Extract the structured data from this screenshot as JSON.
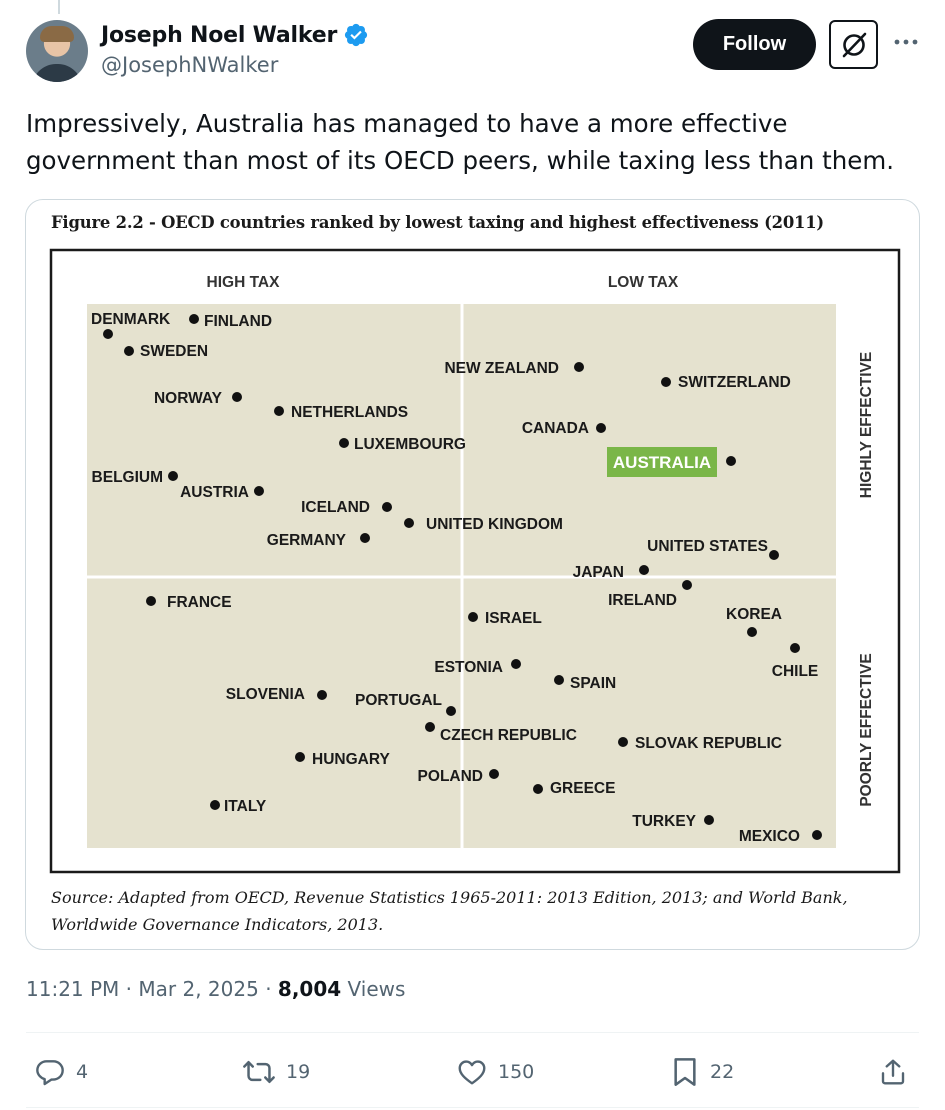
{
  "author": {
    "name": "Joseph Noel Walker",
    "handle": "@JosephNWalker",
    "verified_icon": "verified-badge-icon",
    "avatar_icon": "avatar"
  },
  "buttons": {
    "follow_label": "Follow",
    "grok_icon": "grok-icon",
    "more_icon": "more-icon"
  },
  "tweet": {
    "text": "Impressively, Australia has managed to have a more effective government than most of its OECD peers, while taxing less than them."
  },
  "figure": {
    "title": "Figure 2.2 - OECD countries ranked by lowest taxing and highest effectiveness (2011)",
    "source": "Source: Adapted from OECD, Revenue Statistics 1965-2011: 2013 Edition, 2013; and World Bank, Worldwide Governance Indicators, 2013."
  },
  "chart_data": {
    "type": "scatter",
    "quadrant_labels": {
      "top_left": "HIGH TAX",
      "top_right": "LOW TAX",
      "right_top": "HIGHLY EFFECTIVE",
      "right_bottom": "POORLY EFFECTIVE"
    },
    "x_scale": "tax level, higher to the left",
    "y_scale": "effectiveness, higher to the top",
    "highlight": "AUSTRALIA",
    "highlight_color": "#7ab648",
    "quadrant_fill": "#e5e2cf",
    "points": [
      {
        "label": "DENMARK"
      },
      {
        "label": "FINLAND"
      },
      {
        "label": "SWEDEN"
      },
      {
        "label": "NORWAY"
      },
      {
        "label": "NETHERLANDS"
      },
      {
        "label": "LUXEMBOURG"
      },
      {
        "label": "BELGIUM"
      },
      {
        "label": "AUSTRIA"
      },
      {
        "label": "ICELAND"
      },
      {
        "label": "UNITED KINGDOM"
      },
      {
        "label": "GERMANY"
      },
      {
        "label": "NEW ZEALAND"
      },
      {
        "label": "SWITZERLAND"
      },
      {
        "label": "CANADA"
      },
      {
        "label": "AUSTRALIA"
      },
      {
        "label": "UNITED STATES"
      },
      {
        "label": "JAPAN"
      },
      {
        "label": "IRELAND"
      },
      {
        "label": "FRANCE"
      },
      {
        "label": "ISRAEL"
      },
      {
        "label": "KOREA"
      },
      {
        "label": "CHILE"
      },
      {
        "label": "ESTONIA"
      },
      {
        "label": "SPAIN"
      },
      {
        "label": "SLOVENIA"
      },
      {
        "label": "PORTUGAL"
      },
      {
        "label": "CZECH REPUBLIC"
      },
      {
        "label": "SLOVAK REPUBLIC"
      },
      {
        "label": "HUNGARY"
      },
      {
        "label": "POLAND"
      },
      {
        "label": "GREECE"
      },
      {
        "label": "ITALY"
      },
      {
        "label": "TURKEY"
      },
      {
        "label": "MEXICO"
      }
    ]
  },
  "meta": {
    "time": "11:21 PM",
    "separator": "·",
    "date": "Mar 2, 2025",
    "views_count": "8,004",
    "views_label": "Views"
  },
  "actions": {
    "replies": "4",
    "reposts": "19",
    "likes": "150",
    "bookmarks": "22",
    "reply_icon": "reply-icon",
    "repost_icon": "repost-icon",
    "like_icon": "like-icon",
    "bookmark_icon": "bookmark-icon",
    "share_icon": "share-icon"
  }
}
